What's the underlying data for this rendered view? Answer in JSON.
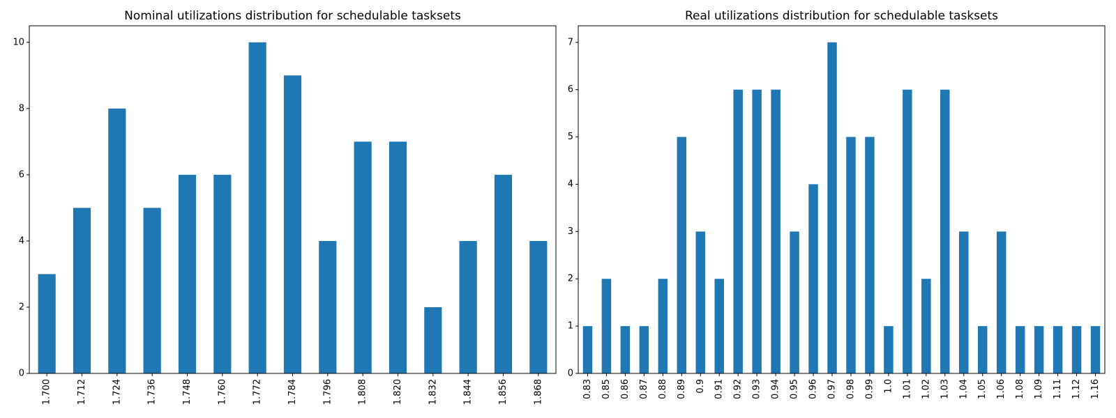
{
  "chart_data": [
    {
      "type": "bar",
      "title": "Nominal utilizations distribution for schedulable tasksets",
      "xlabel": "",
      "ylabel": "",
      "categories": [
        "1.700",
        "1.712",
        "1.724",
        "1.736",
        "1.748",
        "1.760",
        "1.772",
        "1.784",
        "1.796",
        "1.808",
        "1.820",
        "1.832",
        "1.844",
        "1.856",
        "1.868"
      ],
      "values": [
        3,
        5,
        8,
        5,
        6,
        6,
        10,
        9,
        4,
        7,
        7,
        2,
        4,
        6,
        4
      ],
      "ylim": [
        0,
        10.5
      ],
      "yticks": [
        0,
        2,
        4,
        6,
        8,
        10
      ],
      "bar_color": "#1f77b4",
      "grid": false,
      "legend": false
    },
    {
      "type": "bar",
      "title": "Real utilizations distribution for schedulable tasksets",
      "xlabel": "",
      "ylabel": "",
      "categories": [
        "0.83",
        "0.85",
        "0.86",
        "0.87",
        "0.88",
        "0.89",
        "0.9",
        "0.91",
        "0.92",
        "0.93",
        "0.94",
        "0.95",
        "0.96",
        "0.97",
        "0.98",
        "0.99",
        "1.0",
        "1.01",
        "1.02",
        "1.03",
        "1.04",
        "1.05",
        "1.06",
        "1.08",
        "1.09",
        "1.11",
        "1.12",
        "1.16"
      ],
      "values": [
        1,
        2,
        1,
        1,
        2,
        5,
        3,
        2,
        6,
        6,
        6,
        3,
        4,
        7,
        5,
        5,
        1,
        6,
        2,
        6,
        3,
        1,
        3,
        1,
        1,
        1,
        1,
        1
      ],
      "ylim": [
        0,
        7.35
      ],
      "yticks": [
        0,
        1,
        2,
        3,
        4,
        5,
        6,
        7
      ],
      "bar_color": "#1f77b4",
      "grid": false,
      "legend": false
    }
  ]
}
